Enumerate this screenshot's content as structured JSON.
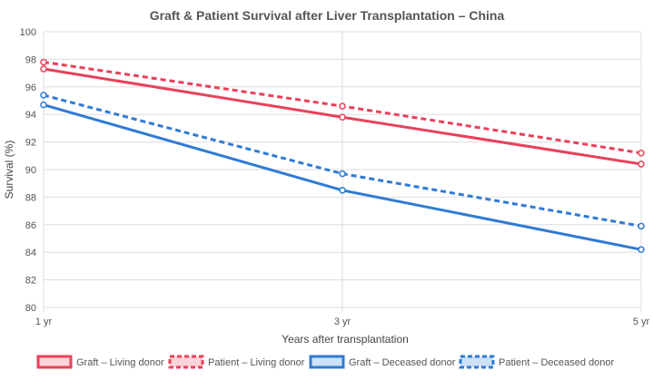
{
  "chart_data": {
    "type": "line",
    "title": "Graft & Patient Survival after Liver Transplantation – China",
    "xlabel": "Years after transplantation",
    "ylabel": "Survival (%)",
    "categories": [
      "1 yr",
      "3 yr",
      "5 yr"
    ],
    "ylim": [
      80,
      100
    ],
    "yticks": [
      "80",
      "82",
      "84",
      "86",
      "88",
      "90",
      "92",
      "94",
      "96",
      "98",
      "100"
    ],
    "grid": true,
    "legend_position": "bottom",
    "series": [
      {
        "name": "Graft – Living donor",
        "values": [
          97.3,
          93.8,
          90.4
        ],
        "color": "#e8415a",
        "dashed": false
      },
      {
        "name": "Patient – Living donor",
        "values": [
          97.8,
          94.6,
          91.2
        ],
        "color": "#e8415a",
        "dashed": true
      },
      {
        "name": "Graft – Deceased donor",
        "values": [
          94.7,
          88.5,
          84.2
        ],
        "color": "#2f7bd4",
        "dashed": false
      },
      {
        "name": "Patient – Deceased donor",
        "values": [
          95.4,
          89.7,
          85.9
        ],
        "color": "#2f7bd4",
        "dashed": true
      }
    ]
  }
}
